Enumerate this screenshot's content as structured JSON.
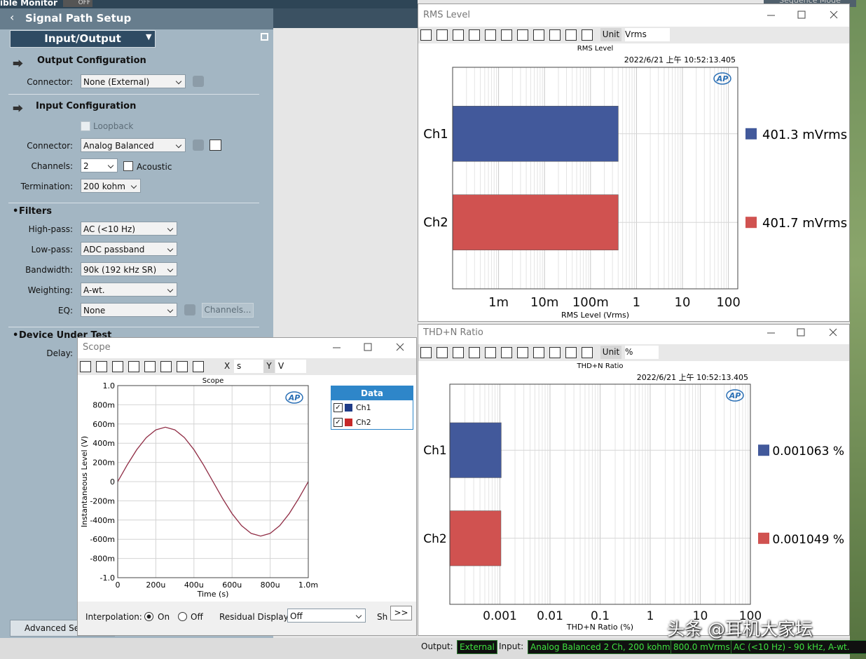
{
  "top_bar": {
    "monitor": "ible Monitor",
    "monitor_state": "OFF",
    "sequence": "Sequence Mode"
  },
  "signal_path": {
    "title": "Signal Path Setup",
    "selector": "Input/Output",
    "output": {
      "heading": "Output Configuration",
      "connector_label": "Connector:",
      "connector": "None (External)"
    },
    "input": {
      "heading": "Input Configuration",
      "loopback": "Loopback",
      "connector_label": "Connector:",
      "connector": "Analog Balanced",
      "channels_label": "Channels:",
      "channels": 2,
      "acoustic": "Acoustic",
      "termination_label": "Termination:",
      "termination": "200 kohm"
    },
    "filters": {
      "heading": "Filters",
      "rows": [
        [
          "High-pass:",
          "AC (<10 Hz)"
        ],
        [
          "Low-pass:",
          "ADC passband"
        ],
        [
          "Bandwidth:",
          "90k (192 kHz SR)"
        ],
        [
          "Weighting:",
          "A-wt."
        ],
        [
          "EQ:",
          "None"
        ]
      ],
      "channels_button": "Channels..."
    },
    "dut": {
      "heading": "Device Under Test",
      "delay_label": "Delay:"
    },
    "advanced": "Advanced Setti"
  },
  "windows": {
    "rms": {
      "title": "RMS Level",
      "unit_label": "Unit",
      "unit": "Vrms"
    },
    "thd": {
      "title": "THD+N Ratio",
      "unit_label": "Unit",
      "unit": "%"
    },
    "scope": {
      "title": "Scope",
      "x_label": "X",
      "x_unit": "s",
      "y_label": "Y",
      "y_unit": "V",
      "legend_title": "Data",
      "interpolation_label": "Interpolation:",
      "on": "On",
      "off": "Off",
      "residual_label": "Residual Display:",
      "residual": "Off",
      "show": "Sh",
      "more": ">>"
    }
  },
  "logo": "AP",
  "status_bar": {
    "output_label": "Output:",
    "output": "External",
    "input_label": "Input:",
    "input": "Analog Balanced 2 Ch, 200 kohm",
    "level": "800.0 mVrms",
    "filter": "AC (<10 Hz) - 90 kHz, A-wt."
  },
  "watermark": "头条 @耳机大家坛",
  "chart_data": [
    {
      "type": "bar",
      "title": "RMS Level",
      "subtitle": "2022/6/21 上午 10:52:13.405",
      "x_label": "RMS Level (Vrms)",
      "categories": [
        "Ch1",
        "Ch2"
      ],
      "values": [
        0.4013,
        0.4017
      ],
      "value_labels": [
        "401.3 mVrms",
        "401.7 mVrms"
      ],
      "colors": [
        "#42599b",
        "#d05250"
      ],
      "xlim": [
        0.0001,
        160
      ],
      "xticks": [
        {
          "value": 0.001,
          "label": "1m"
        },
        {
          "value": 0.01,
          "label": "10m"
        },
        {
          "value": 0.1,
          "label": "100m"
        },
        1,
        10,
        100
      ],
      "log_x": true,
      "grid": true
    },
    {
      "type": "bar",
      "title": "THD+N Ratio",
      "subtitle": "2022/6/21 上午 10:52:13.405",
      "x_label": "THD+N Ratio (%)",
      "categories": [
        "Ch1",
        "Ch2"
      ],
      "values": [
        0.001063,
        0.001049
      ],
      "value_labels": [
        "0.001063 %",
        "0.001049 %"
      ],
      "colors": [
        "#42599b",
        "#d05250"
      ],
      "xlim": [
        0.0001,
        100
      ],
      "xticks": [
        0.001,
        0.01,
        0.1,
        1,
        10,
        100
      ],
      "log_x": true,
      "grid": true
    },
    {
      "type": "line",
      "title": "Scope",
      "x_label": "Time (s)",
      "y_label": "Instantaneous Level (V)",
      "x": [
        0,
        5e-05,
        0.0001,
        0.00015,
        0.0002,
        0.00025,
        0.0003,
        0.00035,
        0.0004,
        0.00045,
        0.0005,
        0.00055,
        0.0006,
        0.00065,
        0.0007,
        0.00075,
        0.0008,
        0.00085,
        0.0009,
        0.00095,
        0.001
      ],
      "series": [
        {
          "name": "Ch1",
          "color": "#1f3c88",
          "values": [
            0,
            0.175,
            0.333,
            0.459,
            0.539,
            0.567,
            0.539,
            0.459,
            0.333,
            0.175,
            0,
            -0.175,
            -0.333,
            -0.459,
            -0.539,
            -0.567,
            -0.539,
            -0.459,
            -0.333,
            -0.175,
            0
          ]
        },
        {
          "name": "Ch2",
          "color": "#c62828",
          "values": [
            0,
            0.175,
            0.333,
            0.459,
            0.539,
            0.567,
            0.539,
            0.459,
            0.333,
            0.175,
            0,
            -0.175,
            -0.333,
            -0.459,
            -0.539,
            -0.567,
            -0.539,
            -0.459,
            -0.333,
            -0.175,
            0
          ]
        }
      ],
      "xlim": [
        0,
        0.001
      ],
      "ylim": [
        -1,
        1
      ],
      "xticks": [
        0,
        {
          "value": 0.0002,
          "label": "200u"
        },
        {
          "value": 0.0004,
          "label": "400u"
        },
        {
          "value": 0.0006,
          "label": "600u"
        },
        {
          "value": 0.0008,
          "label": "800u"
        },
        {
          "value": 0.001,
          "label": "1.0m"
        }
      ],
      "yticks": [
        {
          "value": 1,
          "label": "1.0"
        },
        {
          "value": 0.8,
          "label": "800m"
        },
        {
          "value": 0.6,
          "label": "600m"
        },
        {
          "value": 0.4,
          "label": "400m"
        },
        {
          "value": 0.2,
          "label": "200m"
        },
        0,
        {
          "value": -0.2,
          "label": "-200m"
        },
        {
          "value": -0.4,
          "label": "-400m"
        },
        {
          "value": -0.6,
          "label": "-600m"
        },
        {
          "value": -0.8,
          "label": "-800m"
        },
        {
          "value": -1,
          "label": "-1.0"
        }
      ],
      "grid": true
    }
  ]
}
